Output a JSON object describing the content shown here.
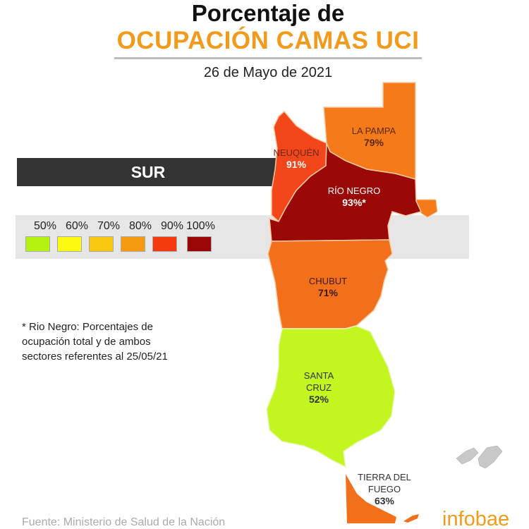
{
  "title_line1": "Porcentaje de",
  "title_line2": "OCUPACIÓN CAMAS UCI",
  "date": "26 de Mayo de 2021",
  "region_label": "SUR",
  "legend": [
    {
      "label": "50%",
      "color": "#b5f20f"
    },
    {
      "label": "60%",
      "color": "#fbfa10"
    },
    {
      "label": "70%",
      "color": "#f7ca10"
    },
    {
      "label": "80%",
      "color": "#f59a10"
    },
    {
      "label": "90%",
      "color": "#f53a10"
    },
    {
      "label": "100%",
      "color": "#9a0505"
    }
  ],
  "chart_data": {
    "type": "choropleth",
    "title": "Porcentaje de OCUPACIÓN CAMAS UCI",
    "provinces": [
      {
        "name": "LA PAMPA",
        "value": "79%",
        "color": "#f47a1a"
      },
      {
        "name": "NEUQUÉN",
        "value": "91%",
        "color": "#f3461a"
      },
      {
        "name": "RÍO NEGRO",
        "value": "93%*",
        "color": "#9b0808"
      },
      {
        "name": "CHUBUT",
        "value": "71%",
        "color": "#f2701c"
      },
      {
        "name": "SANTA CRUZ",
        "value": "52%",
        "color": "#c3f521"
      },
      {
        "name": "TIERRA DEL FUEGO",
        "value": "63%",
        "color": "#f2701c"
      }
    ]
  },
  "footnote": "* Rio Negro: Porcentajes de ocupación total y de ambos sectores referentes al 25/05/21",
  "source": "Fuente: Ministerio de Salud de la Nación",
  "logo": "infobae"
}
